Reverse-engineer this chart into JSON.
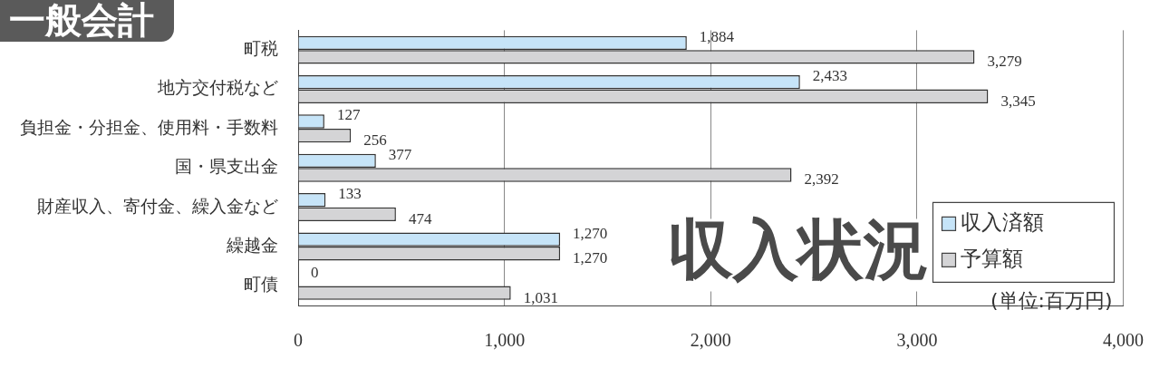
{
  "chart_data": {
    "type": "bar",
    "orientation": "horizontal",
    "title": "一般会計",
    "categories": [
      "町税",
      "地方交付税など",
      "負担金・分担金、使用料・手数料",
      "国・県支出金",
      "財産収入、寄付金、繰入金など",
      "繰越金",
      "町債"
    ],
    "series": [
      {
        "name": "収入済額",
        "color": "#c6e4f8",
        "values": [
          1884,
          2433,
          127,
          377,
          133,
          1270,
          0
        ],
        "value_labels": [
          "1,884",
          "2,433",
          "127",
          "377",
          "133",
          "1,270",
          "0"
        ]
      },
      {
        "name": "予算額",
        "color": "#d4d4d6",
        "values": [
          3279,
          3345,
          256,
          2392,
          474,
          1270,
          1031
        ],
        "value_labels": [
          "3,279",
          "3,345",
          "256",
          "2,392",
          "474",
          "1,270",
          "1,031"
        ]
      }
    ],
    "xlim": [
      0,
      4000
    ],
    "xticks": [
      {
        "value": 0,
        "label": "0"
      },
      {
        "value": 1000,
        "label": "1,000"
      },
      {
        "value": 2000,
        "label": "2,000"
      },
      {
        "value": 3000,
        "label": "3,000"
      },
      {
        "value": 4000,
        "label": "4,000"
      }
    ],
    "grid": "x",
    "legend": "right",
    "annotations": [
      "収入状況",
      "(単位:百万円)"
    ]
  }
}
